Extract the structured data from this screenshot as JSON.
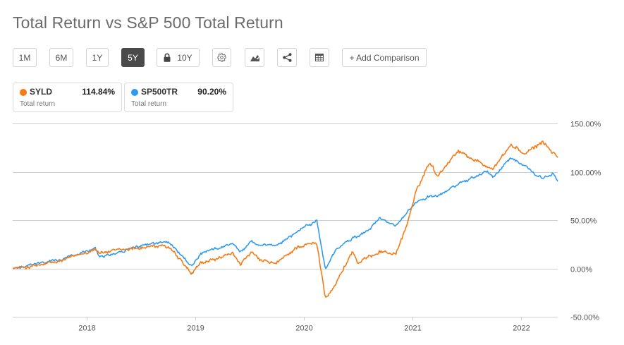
{
  "header": {
    "title": "Total Return vs S&P 500 Total Return"
  },
  "toolbar": {
    "ranges": [
      {
        "label": "1M",
        "active": false
      },
      {
        "label": "6M",
        "active": false
      },
      {
        "label": "1Y",
        "active": false
      },
      {
        "label": "5Y",
        "active": true
      },
      {
        "label": "10Y",
        "active": false,
        "locked": true
      }
    ],
    "icons": [
      "gear-icon",
      "chart-type-icon",
      "share-icon",
      "table-icon"
    ],
    "add_comparison": "+ Add Comparison"
  },
  "legend": [
    {
      "symbol": "SYLD",
      "value": "114.84%",
      "sub": "Total return",
      "color": "#f57b16"
    },
    {
      "symbol": "SP500TR",
      "value": "90.20%",
      "sub": "Total return",
      "color": "#2f9bf0"
    }
  ],
  "chart_data": {
    "type": "line",
    "title": "Total Return vs S&P 500 Total Return",
    "xlabel": "",
    "ylabel": "",
    "xlim": [
      2017.32,
      2022.34
    ],
    "ylim": [
      -50,
      150
    ],
    "grid": true,
    "x_ticks": [
      "2018",
      "2019",
      "2020",
      "2021",
      "2022"
    ],
    "y_ticks": [
      "150.00%",
      "100.00%",
      "50.00%",
      "0.00%",
      "-50.00%"
    ],
    "y_tick_values": [
      150,
      100,
      50,
      0,
      -50
    ],
    "x_tick_values": [
      2018,
      2019,
      2020,
      2021,
      2022
    ],
    "series": [
      {
        "name": "SYLD",
        "color": "#f57b16",
        "x": [
          2017.32,
          2017.5,
          2017.75,
          2018.0,
          2018.08,
          2018.12,
          2018.4,
          2018.6,
          2018.76,
          2018.97,
          2019.05,
          2019.35,
          2019.42,
          2019.52,
          2019.6,
          2019.75,
          2019.95,
          2020.12,
          2020.2,
          2020.3,
          2020.45,
          2020.5,
          2020.62,
          2020.7,
          2020.85,
          2020.95,
          2021.03,
          2021.16,
          2021.23,
          2021.42,
          2021.68,
          2021.75,
          2021.91,
          2022.04,
          2022.2,
          2022.3,
          2022.34
        ],
        "y": [
          0,
          2,
          7,
          17,
          21,
          16,
          20,
          23,
          22,
          -6,
          5,
          15,
          5,
          16,
          8,
          5,
          23,
          26,
          -30,
          -15,
          18,
          5,
          13,
          18,
          15,
          45,
          77,
          111,
          96,
          122,
          106,
          104,
          128,
          118,
          131,
          120,
          114.84
        ]
      },
      {
        "name": "SP500TR",
        "color": "#2f9bf0",
        "x": [
          2017.32,
          2017.5,
          2017.75,
          2018.0,
          2018.08,
          2018.12,
          2018.4,
          2018.6,
          2018.76,
          2018.97,
          2019.05,
          2019.35,
          2019.42,
          2019.52,
          2019.6,
          2019.75,
          2019.95,
          2020.12,
          2020.2,
          2020.3,
          2020.45,
          2020.5,
          2020.62,
          2020.7,
          2020.85,
          2020.95,
          2021.03,
          2021.16,
          2021.23,
          2021.42,
          2021.68,
          2021.75,
          2021.91,
          2022.04,
          2022.2,
          2022.3,
          2022.34
        ],
        "y": [
          0,
          4,
          9,
          18,
          22,
          12,
          20,
          26,
          27,
          2,
          15,
          26,
          17,
          28,
          24,
          23,
          39,
          50,
          -1,
          20,
          31,
          33,
          42,
          52,
          44,
          57,
          69,
          74,
          74,
          87,
          100,
          95,
          115,
          106,
          93,
          98,
          90.2
        ]
      }
    ]
  }
}
